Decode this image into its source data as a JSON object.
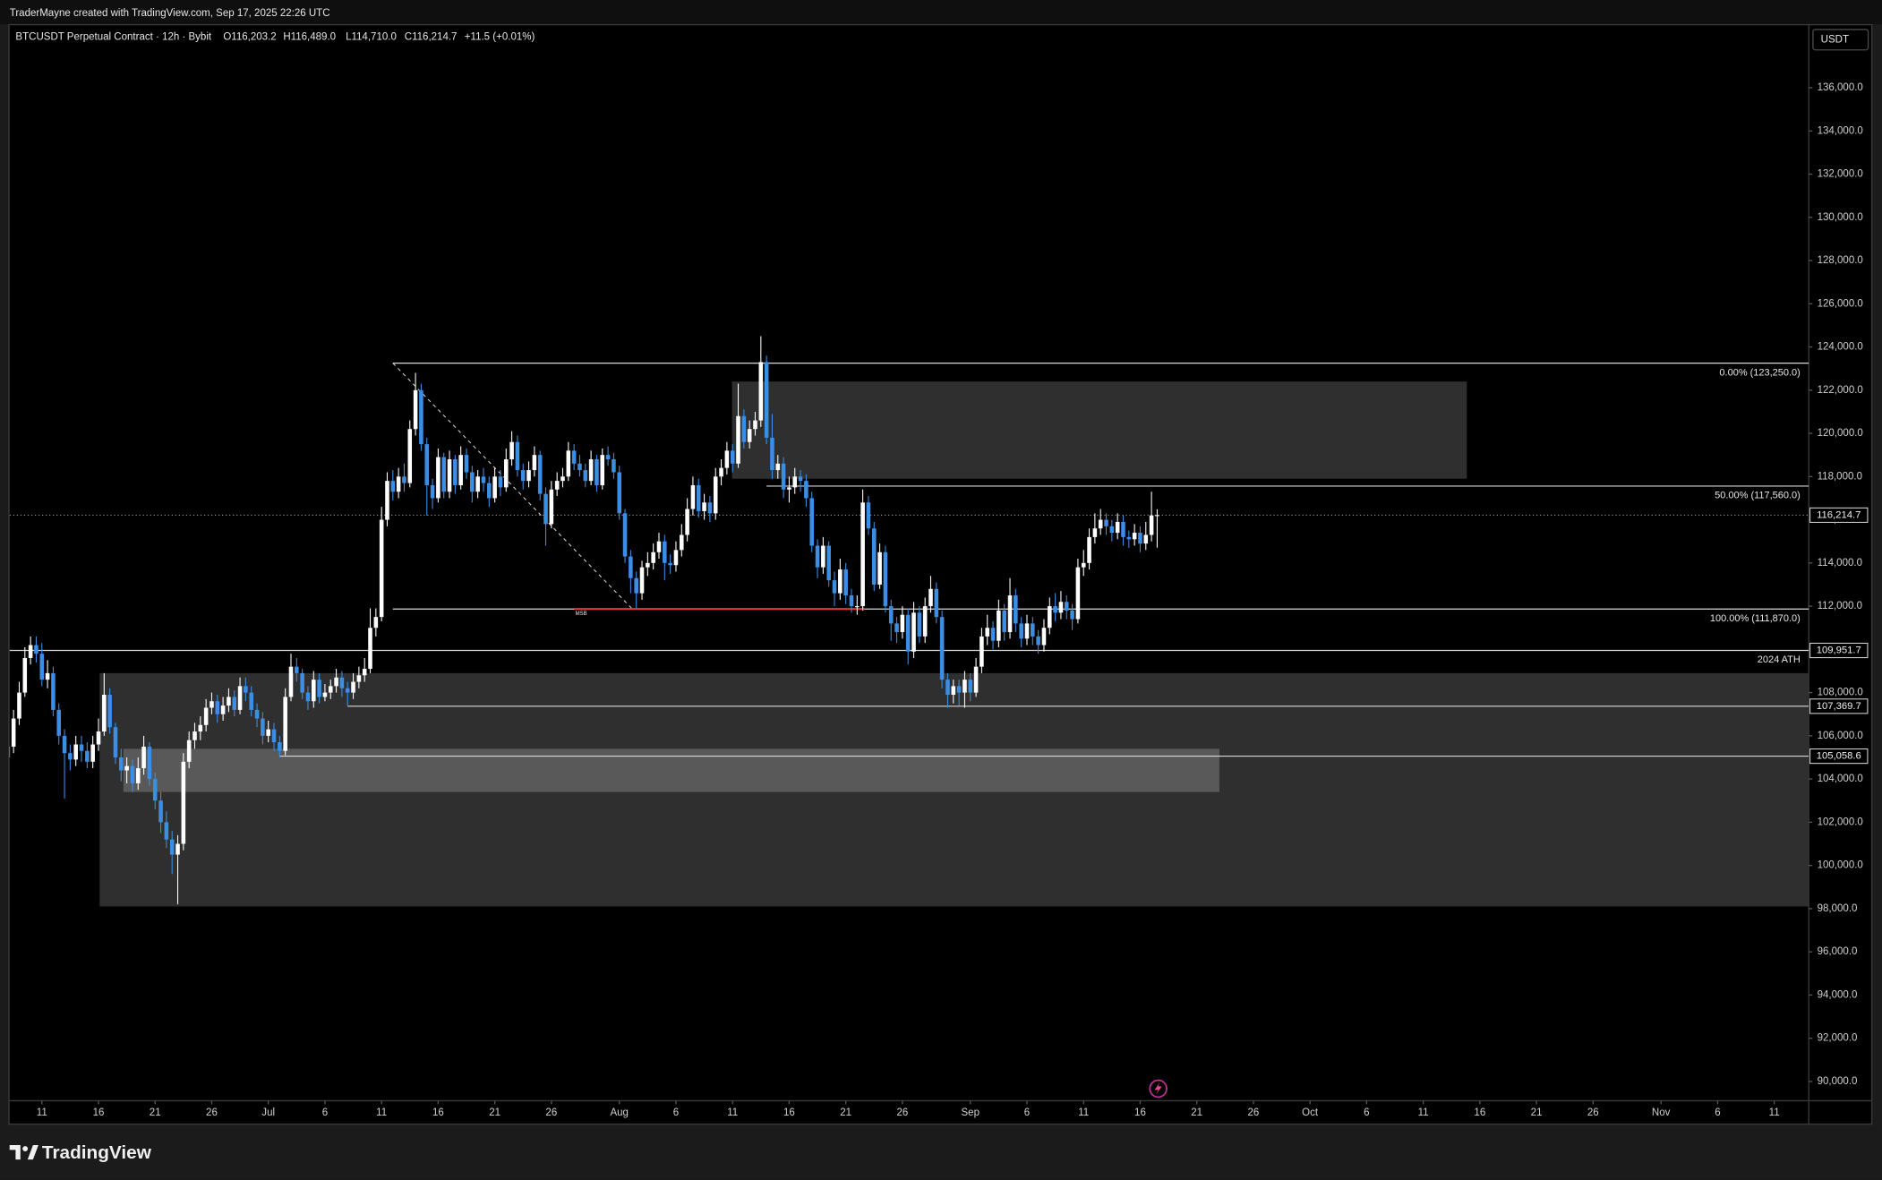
{
  "chart_data": {
    "type": "candlestick",
    "watermark": "TraderMayne created with TradingView.com, Sep 17, 2025 22:26 UTC",
    "symbol": "BTCUSDT Perpetual Contract · 12h · Bybit",
    "ohlc": [
      "O116,203.2",
      "H116,489.0",
      "L114,710.0",
      "C116,214.7"
    ],
    "change": "+11.5 (+0.01%)",
    "currency": "USDT",
    "brand": "TradingView",
    "up_color": "#ffffff",
    "down_color": "#3b8ee4",
    "xlim": [
      0.3,
      318.1
    ],
    "xticks": [
      {
        "value": 6,
        "label": "11"
      },
      {
        "value": 16,
        "label": "16"
      },
      {
        "value": 26,
        "label": "21"
      },
      {
        "value": 36,
        "label": "26"
      },
      {
        "value": 46,
        "label": "Jul"
      },
      {
        "value": 56,
        "label": "6"
      },
      {
        "value": 66,
        "label": "11"
      },
      {
        "value": 76,
        "label": "16"
      },
      {
        "value": 86,
        "label": "21"
      },
      {
        "value": 96,
        "label": "26"
      },
      {
        "value": 108,
        "label": "Aug"
      },
      {
        "value": 118,
        "label": "6"
      },
      {
        "value": 128,
        "label": "11"
      },
      {
        "value": 138,
        "label": "16"
      },
      {
        "value": 148,
        "label": "21"
      },
      {
        "value": 158,
        "label": "26"
      },
      {
        "value": 170,
        "label": "Sep"
      },
      {
        "value": 180,
        "label": "6"
      },
      {
        "value": 190,
        "label": "11"
      },
      {
        "value": 200,
        "label": "16"
      },
      {
        "value": 210,
        "label": "21"
      },
      {
        "value": 220,
        "label": "26"
      },
      {
        "value": 230,
        "label": "Oct"
      },
      {
        "value": 240,
        "label": "6"
      },
      {
        "value": 250,
        "label": "11"
      },
      {
        "value": 260,
        "label": "16"
      },
      {
        "value": 270,
        "label": "21"
      },
      {
        "value": 280,
        "label": "26"
      },
      {
        "value": 292,
        "label": "Nov"
      },
      {
        "value": 302,
        "label": "6"
      },
      {
        "value": 312,
        "label": "11"
      }
    ],
    "ylim": [
      89110,
      138945
    ],
    "yticks": [
      {
        "value": 90000,
        "label": "90,000.0"
      },
      {
        "value": 92000,
        "label": "92,000.0"
      },
      {
        "value": 94000,
        "label": "94,000.0"
      },
      {
        "value": 96000,
        "label": "96,000.0"
      },
      {
        "value": 98000,
        "label": "98,000.0"
      },
      {
        "value": 100000,
        "label": "100,000.0"
      },
      {
        "value": 102000,
        "label": "102,000.0"
      },
      {
        "value": 104000,
        "label": "104,000.0"
      },
      {
        "value": 106000,
        "label": "106,000.0"
      },
      {
        "value": 108000,
        "label": "108,000.0"
      },
      {
        "value": 110000,
        "label": "110,000.0"
      },
      {
        "value": 112000,
        "label": "112,000.0"
      },
      {
        "value": 114000,
        "label": "114,000.0"
      },
      {
        "value": 116000,
        "label": "116,000.0"
      },
      {
        "value": 118000,
        "label": "118,000.0"
      },
      {
        "value": 120000,
        "label": "120,000.0"
      },
      {
        "value": 122000,
        "label": "122,000.0"
      },
      {
        "value": 124000,
        "label": "124,000.0"
      },
      {
        "value": 126000,
        "label": "126,000.0"
      },
      {
        "value": 128000,
        "label": "128,000.0"
      },
      {
        "value": 130000,
        "label": "130,000.0"
      },
      {
        "value": 132000,
        "label": "132,000.0"
      },
      {
        "value": 134000,
        "label": "134,000.0"
      },
      {
        "value": 136000,
        "label": "136,000.0"
      }
    ],
    "zones": [
      {
        "x": [
          16.2,
          318.1
        ],
        "y": [
          98100,
          108900
        ],
        "color": "#2f2f2f"
      },
      {
        "x": [
          127.9,
          257.7
        ],
        "y": [
          117900,
          122400
        ],
        "color": "#2f2f2f"
      },
      {
        "x": [
          20.4,
          214.0
        ],
        "y": [
          103400,
          105400
        ],
        "color": "#595959"
      }
    ],
    "levels": [
      {
        "value": 123250,
        "label": "0.00% (123,250.0)",
        "x_start": 68
      },
      {
        "value": 117560,
        "label": "50.00% (117,560.0)",
        "x_start": 134
      },
      {
        "value": 111870,
        "label": "100.00% (111,870.0)",
        "x_start": 68
      },
      {
        "value": 109951.7,
        "label": "2024 ATH",
        "tag": "109,951.7"
      },
      {
        "value": 107369.7,
        "tag": "107,369.7",
        "x_start": 60
      },
      {
        "value": 105058.6,
        "tag": "105,058.6",
        "x_start": 48
      },
      {
        "value": 116214.7,
        "tag": "116,214.7",
        "dotted": true
      }
    ],
    "msb": {
      "value": 111870,
      "x": [
        100,
        151.3
      ],
      "label": "MSB",
      "color": "#e53935"
    },
    "fib_diagonal": {
      "x": [
        68,
        110.3
      ],
      "y": [
        123250,
        111870
      ]
    },
    "open": [
      105000,
      105500,
      106800,
      108000,
      109600,
      110200,
      109800,
      108600,
      108900,
      107200,
      106000,
      105200,
      104900,
      105600,
      105300,
      104800,
      105600,
      106200,
      107900,
      106400,
      105000,
      104400,
      104600,
      103800,
      104500,
      105500,
      104000,
      103000,
      102000,
      101200,
      100500,
      101000,
      104800,
      105800,
      106200,
      106500,
      107300,
      107600,
      107000,
      107400,
      107800,
      107200,
      108300,
      108000,
      107200,
      106800,
      106000,
      106300,
      105700,
      105300,
      107800,
      109200,
      108900,
      108000,
      107600,
      108600,
      107800,
      108000,
      108300,
      108700,
      108200,
      108000,
      108500,
      108800,
      109100,
      111000,
      111500,
      116000,
      117800,
      117300,
      118000,
      117700,
      120200,
      122000,
      119500,
      117600,
      117000,
      118900,
      117300,
      118800,
      117600,
      119000,
      118200,
      117300,
      118000,
      117700,
      117000,
      118000,
      117500,
      118800,
      119600,
      118300,
      117800,
      118300,
      119000,
      117200,
      115800,
      117400,
      117800,
      118000,
      119200,
      118600,
      118300,
      117800,
      118800,
      117600,
      119000,
      118800,
      118200,
      116300,
      114300,
      113300,
      112600,
      113800,
      114000,
      114500,
      115000,
      114000,
      113900,
      114600,
      115300,
      116500,
      117600,
      116400,
      116800,
      116300,
      118000,
      118400,
      119200,
      118600,
      120800,
      119600,
      120200,
      120600,
      123300,
      119800,
      118300,
      118600,
      117400,
      117500,
      118000,
      117800,
      117000,
      114800,
      113800,
      114800,
      113200,
      112600,
      113700,
      112500,
      112000,
      112000,
      116800,
      115600,
      113000,
      114500,
      112000,
      111200,
      110800,
      111600,
      109900,
      111700,
      110600,
      112000,
      112800,
      111500,
      108600,
      107900,
      108300,
      108000,
      108600,
      108000,
      109200,
      110600,
      111000,
      110400,
      111800,
      110800,
      112500,
      111200,
      110500,
      111200,
      110600,
      110200,
      111000,
      112000,
      111700,
      112200,
      111800,
      111400,
      113800,
      114000,
      115200,
      115600,
      116000,
      115700,
      115400,
      115900,
      115200,
      115100,
      115400,
      114900,
      115300,
      116203.2
    ],
    "high": [
      105900,
      107200,
      108500,
      110100,
      110600,
      110600,
      110300,
      109500,
      109200,
      107500,
      106300,
      105600,
      106000,
      106000,
      105700,
      106000,
      106800,
      108900,
      108200,
      106600,
      105400,
      105000,
      104900,
      105000,
      106000,
      105700,
      104300,
      103400,
      102500,
      101600,
      101400,
      105200,
      106200,
      106600,
      106900,
      107700,
      108000,
      107900,
      107800,
      108200,
      108100,
      108700,
      108700,
      108300,
      107500,
      107100,
      106700,
      106600,
      106000,
      108200,
      109800,
      109600,
      109100,
      108300,
      109000,
      108900,
      108400,
      108600,
      109100,
      109000,
      108500,
      108900,
      109200,
      109600,
      111900,
      111900,
      116600,
      118200,
      118300,
      118400,
      118600,
      120600,
      122800,
      122300,
      119800,
      117900,
      119300,
      119100,
      119200,
      119000,
      119400,
      119300,
      118500,
      118300,
      118400,
      118000,
      118400,
      118300,
      119300,
      120100,
      119900,
      118600,
      118700,
      119400,
      119200,
      117500,
      117800,
      118200,
      118400,
      119600,
      119500,
      119000,
      118600,
      119200,
      119000,
      119300,
      119400,
      119100,
      118500,
      116500,
      114600,
      113600,
      114100,
      114500,
      114900,
      115400,
      115300,
      114400,
      115000,
      115800,
      117000,
      118000,
      117900,
      117200,
      117100,
      118400,
      118800,
      119600,
      119500,
      122300,
      121100,
      120600,
      121000,
      124500,
      123600,
      120900,
      119000,
      118900,
      118000,
      118400,
      118300,
      118100,
      117300,
      115100,
      115200,
      115000,
      113600,
      114200,
      114000,
      112800,
      112500,
      117400,
      117100,
      115900,
      114900,
      114800,
      112300,
      111500,
      112000,
      111900,
      112200,
      112000,
      112400,
      113400,
      113100,
      111800,
      108900,
      108600,
      108600,
      109000,
      108900,
      109600,
      111000,
      111600,
      111300,
      112300,
      112100,
      113300,
      112800,
      111500,
      111600,
      111500,
      110900,
      111400,
      112400,
      112600,
      112700,
      112500,
      112100,
      114200,
      114600,
      115600,
      116300,
      116500,
      116300,
      116000,
      116300,
      116200,
      115500,
      115800,
      115700,
      115900,
      117300,
      116489.0
    ],
    "low": [
      104600,
      105200,
      106500,
      107800,
      109300,
      109400,
      108300,
      108200,
      106900,
      105600,
      103100,
      104400,
      104600,
      104800,
      104500,
      104500,
      105300,
      106000,
      106100,
      104700,
      103900,
      103800,
      103400,
      103500,
      104200,
      103700,
      102600,
      101500,
      100800,
      99600,
      98200,
      100700,
      104500,
      105400,
      105800,
      106200,
      107000,
      106600,
      106700,
      107100,
      106900,
      107000,
      107600,
      106900,
      106400,
      105600,
      105700,
      105300,
      105000,
      105100,
      107600,
      108500,
      107700,
      107200,
      107300,
      107500,
      107600,
      107700,
      108000,
      107800,
      107400,
      107700,
      108200,
      108500,
      108900,
      110600,
      111300,
      115700,
      116900,
      117000,
      117300,
      117500,
      119900,
      119200,
      116200,
      116500,
      116800,
      117000,
      117000,
      117200,
      117400,
      117900,
      116800,
      117000,
      117300,
      116600,
      116800,
      117100,
      117300,
      118500,
      118000,
      117400,
      117500,
      118000,
      116900,
      114800,
      115600,
      117100,
      117500,
      117800,
      118300,
      118000,
      117500,
      117600,
      117300,
      117400,
      118500,
      117900,
      116000,
      114000,
      112600,
      111900,
      112300,
      113400,
      113700,
      114200,
      113200,
      113500,
      113600,
      114300,
      115000,
      116200,
      116100,
      116000,
      115900,
      116000,
      117600,
      118100,
      118200,
      118400,
      119300,
      119300,
      119900,
      120300,
      119500,
      117900,
      117900,
      117000,
      116800,
      117200,
      117300,
      116600,
      114500,
      113300,
      113500,
      112900,
      112000,
      112300,
      112100,
      111700,
      111600,
      111800,
      115300,
      112700,
      112800,
      111700,
      110400,
      110300,
      110500,
      109300,
      109600,
      110300,
      110300,
      111700,
      111200,
      108200,
      107300,
      107500,
      107400,
      107300,
      107600,
      107800,
      108900,
      110200,
      110000,
      110100,
      110400,
      110500,
      110800,
      110100,
      110200,
      110200,
      109800,
      109900,
      110700,
      111300,
      111400,
      111400,
      110900,
      111200,
      113400,
      113700,
      114900,
      115300,
      115300,
      115000,
      115100,
      114800,
      114700,
      114800,
      114500,
      114600,
      115000,
      114710.0
    ],
    "close": [
      105500,
      106800,
      108000,
      109600,
      110200,
      109800,
      108600,
      108900,
      107200,
      106000,
      105200,
      104900,
      105600,
      105300,
      104800,
      105600,
      106200,
      107900,
      106400,
      105000,
      104400,
      104600,
      103800,
      104500,
      105500,
      104000,
      103000,
      102000,
      101200,
      100500,
      101000,
      104800,
      105800,
      106200,
      106500,
      107300,
      107600,
      107000,
      107400,
      107800,
      107200,
      108300,
      108000,
      107200,
      106800,
      106000,
      106300,
      105700,
      105300,
      107800,
      109200,
      108900,
      108000,
      107600,
      108600,
      107800,
      108000,
      108300,
      108700,
      108200,
      108000,
      108500,
      108800,
      109100,
      111000,
      111500,
      116000,
      117800,
      117300,
      118000,
      117700,
      120200,
      122000,
      119500,
      117600,
      117000,
      118900,
      117300,
      118800,
      117600,
      119000,
      118200,
      117300,
      118000,
      117700,
      117000,
      118000,
      117500,
      118800,
      119600,
      118300,
      117800,
      118300,
      119000,
      117200,
      115800,
      117400,
      117800,
      118000,
      119200,
      118600,
      118300,
      117800,
      118800,
      117600,
      119000,
      118800,
      118200,
      116300,
      114300,
      113300,
      112600,
      113800,
      114000,
      114500,
      115000,
      114000,
      113900,
      114600,
      115300,
      116500,
      117600,
      116400,
      116800,
      116300,
      118000,
      118400,
      119200,
      118600,
      120800,
      119600,
      120200,
      120600,
      123300,
      119800,
      118300,
      118600,
      117400,
      117500,
      118000,
      117800,
      117000,
      114800,
      113800,
      114800,
      113200,
      112600,
      113700,
      112500,
      112000,
      112000,
      116800,
      115600,
      113000,
      114500,
      112000,
      111200,
      110800,
      111600,
      109900,
      111700,
      110600,
      112000,
      112800,
      111500,
      108600,
      107900,
      108300,
      108000,
      108600,
      108000,
      109200,
      110600,
      111000,
      110400,
      111800,
      110800,
      112500,
      111200,
      110500,
      111200,
      110600,
      110200,
      111000,
      112000,
      111700,
      112200,
      111800,
      111400,
      113800,
      114000,
      115200,
      115600,
      116000,
      115700,
      115400,
      115900,
      115200,
      115100,
      115400,
      114900,
      115300,
      116203.2,
      116214.7
    ]
  }
}
